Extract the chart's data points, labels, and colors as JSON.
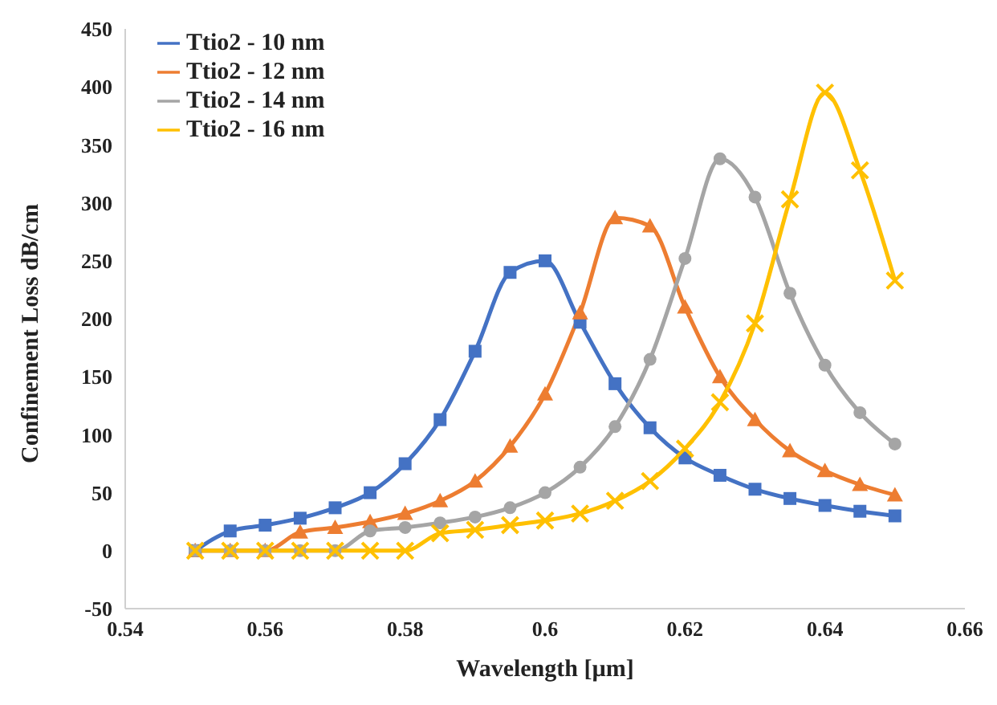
{
  "chart_data": {
    "type": "line",
    "xlabel": "Wavelength [µm]",
    "ylabel": "Confinement Loss dB/cm",
    "x": [
      0.55,
      0.555,
      0.56,
      0.565,
      0.57,
      0.575,
      0.58,
      0.585,
      0.59,
      0.595,
      0.6,
      0.605,
      0.61,
      0.615,
      0.62,
      0.625,
      0.63,
      0.635,
      0.64,
      0.645,
      0.65
    ],
    "series": [
      {
        "name": "Ttio2 - 10 nm",
        "color": "#4472c4",
        "marker": "square",
        "values": [
          0,
          17,
          22,
          28,
          37,
          50,
          75,
          113,
          172,
          240,
          250,
          197,
          144,
          106,
          80,
          65,
          53,
          45,
          39,
          34,
          30
        ]
      },
      {
        "name": "Ttio2 - 12 nm",
        "color": "#ed7d31",
        "marker": "triangle",
        "values": [
          0,
          0,
          0,
          16,
          20,
          25,
          32,
          43,
          60,
          90,
          135,
          205,
          287,
          280,
          210,
          150,
          113,
          86,
          69,
          57,
          48
        ]
      },
      {
        "name": "Ttio2 - 14 nm",
        "color": "#a5a5a5",
        "marker": "circle",
        "values": [
          0,
          0,
          0,
          0,
          0,
          17,
          20,
          24,
          29,
          37,
          50,
          72,
          107,
          165,
          252,
          338,
          305,
          222,
          160,
          119,
          92
        ]
      },
      {
        "name": "Ttio2 - 16 nm",
        "color": "#ffc000",
        "marker": "cross",
        "values": [
          0,
          0,
          0,
          0,
          0,
          0,
          0,
          15,
          18,
          22,
          26,
          32,
          43,
          60,
          88,
          128,
          196,
          303,
          395,
          328,
          233
        ]
      }
    ],
    "xlim": [
      0.54,
      0.66
    ],
    "xticks": [
      0.54,
      0.56,
      0.58,
      0.6,
      0.62,
      0.64,
      0.66
    ],
    "ylim": [
      -50,
      450
    ],
    "yticks": [
      -50,
      0,
      50,
      100,
      150,
      200,
      250,
      300,
      350,
      400,
      450
    ],
    "grid": false,
    "legend": "top left",
    "line_style": "solid"
  }
}
